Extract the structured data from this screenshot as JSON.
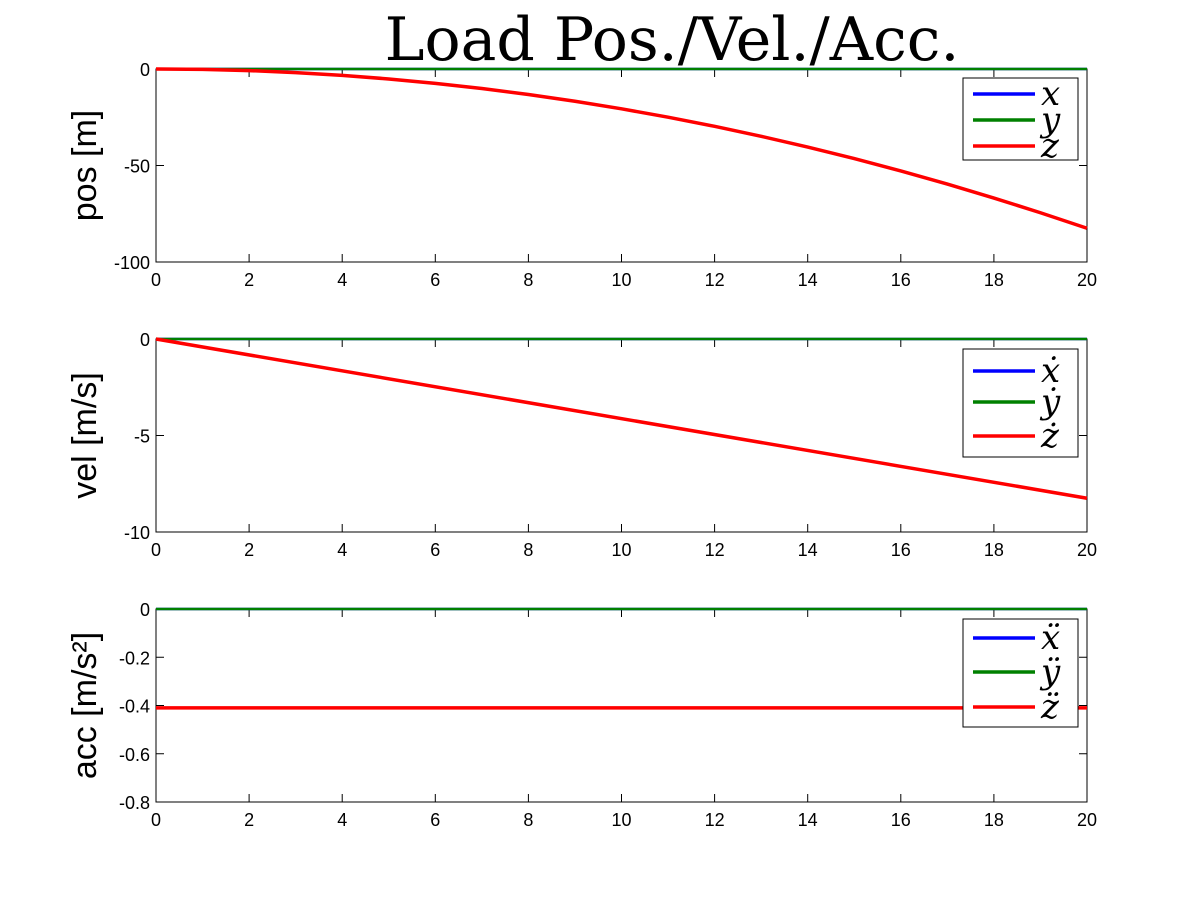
{
  "title": "Load Pos./Vel./Acc.",
  "colors": {
    "x": "#0000ff",
    "y": "#008000",
    "z": "#ff0000"
  },
  "chart_data": [
    {
      "type": "line",
      "ylabel": "pos [m]",
      "xlim": [
        0,
        20
      ],
      "ylim": [
        -100,
        0
      ],
      "xticks": [
        0,
        2,
        4,
        6,
        8,
        10,
        12,
        14,
        16,
        18,
        20
      ],
      "yticks": [
        0,
        -50,
        -100
      ],
      "legend_position": "top-right",
      "x": [
        0,
        1,
        2,
        3,
        4,
        5,
        6,
        7,
        8,
        9,
        10,
        11,
        12,
        13,
        14,
        15,
        16,
        17,
        18,
        19,
        20
      ],
      "series": [
        {
          "name": "x",
          "color": "#0000ff",
          "values": [
            0,
            0,
            0,
            0,
            0,
            0,
            0,
            0,
            0,
            0,
            0,
            0,
            0,
            0,
            0,
            0,
            0,
            0,
            0,
            0,
            0
          ]
        },
        {
          "name": "y",
          "color": "#008000",
          "values": [
            0,
            0,
            0,
            0,
            0,
            0,
            0,
            0,
            0,
            0,
            0,
            0,
            0,
            0,
            0,
            0,
            0,
            0,
            0,
            0,
            0
          ]
        },
        {
          "name": "z",
          "color": "#ff0000",
          "values": [
            0,
            -0.21,
            -0.83,
            -1.86,
            -3.3,
            -5.16,
            -7.43,
            -10.11,
            -13.2,
            -16.71,
            -20.63,
            -24.96,
            -29.71,
            -34.87,
            -40.44,
            -46.42,
            -52.82,
            -59.63,
            -66.85,
            -74.48,
            -82.52
          ]
        }
      ]
    },
    {
      "type": "line",
      "ylabel": "vel [m/s]",
      "xlim": [
        0,
        20
      ],
      "ylim": [
        -10,
        0
      ],
      "xticks": [
        0,
        2,
        4,
        6,
        8,
        10,
        12,
        14,
        16,
        18,
        20
      ],
      "yticks": [
        0,
        -5,
        -10
      ],
      "legend_position": "top-right",
      "x": [
        0,
        20
      ],
      "series": [
        {
          "name": "ẋ",
          "color": "#0000ff",
          "values": [
            0,
            0
          ]
        },
        {
          "name": "ẏ",
          "color": "#008000",
          "values": [
            0,
            0
          ]
        },
        {
          "name": "ż",
          "color": "#ff0000",
          "values": [
            0,
            -8.25
          ]
        }
      ]
    },
    {
      "type": "line",
      "ylabel": "acc [m/s²]",
      "xlim": [
        0,
        20
      ],
      "ylim": [
        -0.8,
        0
      ],
      "xticks": [
        0,
        2,
        4,
        6,
        8,
        10,
        12,
        14,
        16,
        18,
        20
      ],
      "yticks": [
        0,
        -0.2,
        -0.4,
        -0.6,
        -0.8
      ],
      "legend_position": "top-right",
      "x": [
        0,
        20
      ],
      "series": [
        {
          "name": "ẍ",
          "color": "#0000ff",
          "values": [
            0,
            0
          ]
        },
        {
          "name": "ÿ",
          "color": "#008000",
          "values": [
            0,
            0
          ]
        },
        {
          "name": "z̈",
          "color": "#ff0000",
          "values": [
            -0.41,
            -0.41
          ]
        }
      ]
    }
  ]
}
